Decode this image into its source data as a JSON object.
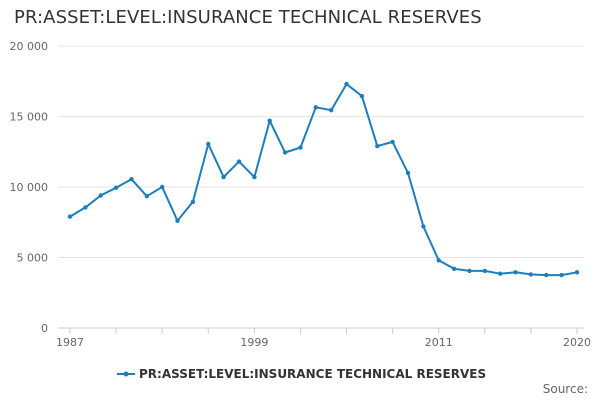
{
  "chart_data": {
    "type": "line",
    "title": "PR:ASSET:LEVEL:INSURANCE TECHNICAL RESERVES",
    "xlabel": "",
    "ylabel": "",
    "x": [
      1987,
      1988,
      1989,
      1990,
      1991,
      1992,
      1993,
      1994,
      1995,
      1996,
      1997,
      1998,
      1999,
      2000,
      2001,
      2002,
      2003,
      2004,
      2005,
      2006,
      2007,
      2008,
      2009,
      2010,
      2011,
      2012,
      2013,
      2014,
      2015,
      2016,
      2017,
      2018,
      2019,
      2020
    ],
    "series": [
      {
        "name": "PR:ASSET:LEVEL:INSURANCE TECHNICAL RESERVES",
        "color": "#1c7fba",
        "values": [
          7900,
          8550,
          9400,
          9950,
          10550,
          9350,
          10000,
          7600,
          8950,
          13050,
          10700,
          11800,
          10700,
          14700,
          12450,
          12800,
          15650,
          15450,
          17300,
          16450,
          12900,
          13200,
          11000,
          7200,
          4800,
          4200,
          4050,
          4050,
          3850,
          3950,
          3800,
          3750,
          3750,
          3950
        ]
      }
    ],
    "ylim": [
      0,
      20000
    ],
    "xlim": [
      1987,
      2020
    ],
    "y_ticks": [
      {
        "value": 0,
        "label": "0"
      },
      {
        "value": 5000,
        "label": "5 000"
      },
      {
        "value": 10000,
        "label": "10 000"
      },
      {
        "value": 15000,
        "label": "15 000"
      },
      {
        "value": 20000,
        "label": "20 000"
      }
    ],
    "x_tick_labels": [
      {
        "value": 1987,
        "label": "1987"
      },
      {
        "value": 1999,
        "label": "1999"
      },
      {
        "value": 2011,
        "label": "2011"
      },
      {
        "value": 2020,
        "label": "2020"
      }
    ],
    "grid": true,
    "legend_position": "bottom-center"
  },
  "footer": {
    "source_label": "Source:"
  },
  "colors": {
    "series": "#1c7fba",
    "grid": "#e6e6e6",
    "axis": "#cccccc",
    "tick_text": "#666666",
    "title_text": "#333333"
  }
}
